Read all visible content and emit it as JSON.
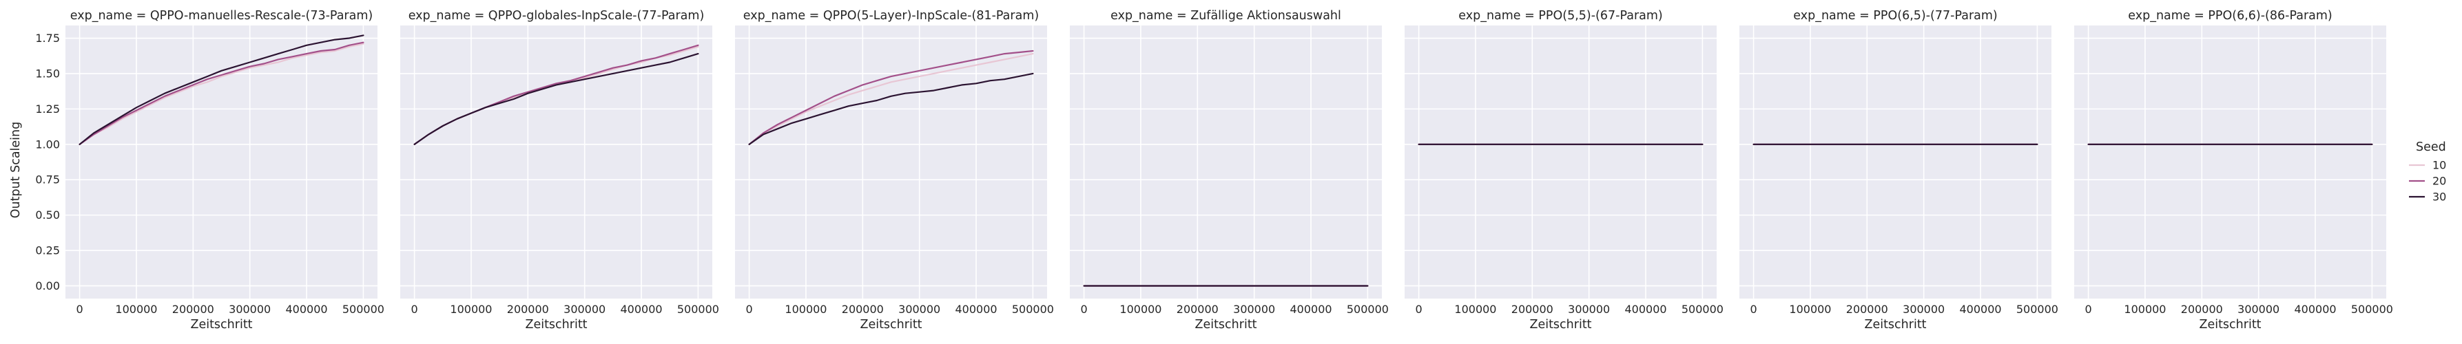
{
  "chart_data": {
    "type": "line",
    "facet_prefix": "exp_name = ",
    "xlabel": "Zeitschritt",
    "ylabel": "Output Scaleing",
    "xlim": [
      -25000,
      525000
    ],
    "ylim": [
      -0.09,
      1.84
    ],
    "xticks": [
      0,
      100000,
      200000,
      300000,
      400000,
      500000
    ],
    "yticks": [
      0.0,
      0.25,
      0.5,
      0.75,
      1.0,
      1.25,
      1.5,
      1.75
    ],
    "ytick_labels": [
      "0.00",
      "0.25",
      "0.50",
      "0.75",
      "1.00",
      "1.25",
      "1.50",
      "1.75"
    ],
    "grid": true,
    "legend": {
      "title": "Seed",
      "placement": "right",
      "entries": [
        {
          "label": "10",
          "color": "#e8c6d4"
        },
        {
          "label": "20",
          "color": "#a3508a"
        },
        {
          "label": "30",
          "color": "#2b1331"
        }
      ]
    },
    "x": [
      0,
      25000,
      50000,
      75000,
      100000,
      125000,
      150000,
      175000,
      200000,
      225000,
      250000,
      275000,
      300000,
      325000,
      350000,
      375000,
      400000,
      425000,
      450000,
      475000,
      500000
    ],
    "facets": [
      {
        "title": "QPPO-manuelles-Rescale-(73-Param)",
        "series": [
          {
            "seed": "10",
            "values": [
              1.0,
              1.07,
              1.12,
              1.18,
              1.23,
              1.28,
              1.33,
              1.37,
              1.41,
              1.44,
              1.48,
              1.51,
              1.54,
              1.56,
              1.58,
              1.61,
              1.63,
              1.65,
              1.66,
              1.69,
              1.71
            ]
          },
          {
            "seed": "20",
            "values": [
              1.0,
              1.07,
              1.13,
              1.19,
              1.24,
              1.29,
              1.34,
              1.38,
              1.42,
              1.46,
              1.49,
              1.52,
              1.55,
              1.57,
              1.6,
              1.62,
              1.64,
              1.66,
              1.67,
              1.7,
              1.72
            ]
          },
          {
            "seed": "30",
            "values": [
              1.0,
              1.08,
              1.14,
              1.2,
              1.26,
              1.31,
              1.36,
              1.4,
              1.44,
              1.48,
              1.52,
              1.55,
              1.58,
              1.61,
              1.64,
              1.67,
              1.7,
              1.72,
              1.74,
              1.75,
              1.77
            ]
          }
        ]
      },
      {
        "title": "QPPO-globales-InpScale-(77-Param)",
        "series": [
          {
            "seed": "10",
            "values": [
              1.0,
              1.07,
              1.13,
              1.18,
              1.22,
              1.26,
              1.3,
              1.33,
              1.36,
              1.39,
              1.42,
              1.45,
              1.47,
              1.5,
              1.53,
              1.56,
              1.58,
              1.61,
              1.63,
              1.66,
              1.69
            ]
          },
          {
            "seed": "20",
            "values": [
              1.0,
              1.07,
              1.13,
              1.18,
              1.22,
              1.26,
              1.3,
              1.34,
              1.37,
              1.4,
              1.43,
              1.45,
              1.48,
              1.51,
              1.54,
              1.56,
              1.59,
              1.61,
              1.64,
              1.67,
              1.7
            ]
          },
          {
            "seed": "30",
            "values": [
              1.0,
              1.07,
              1.13,
              1.18,
              1.22,
              1.26,
              1.29,
              1.32,
              1.36,
              1.39,
              1.42,
              1.44,
              1.46,
              1.48,
              1.5,
              1.52,
              1.54,
              1.56,
              1.58,
              1.61,
              1.64
            ]
          }
        ]
      },
      {
        "title": "QPPO(5-Layer)-InpScale-(81-Param)",
        "series": [
          {
            "seed": "10",
            "values": [
              1.0,
              1.08,
              1.13,
              1.18,
              1.23,
              1.27,
              1.31,
              1.35,
              1.38,
              1.41,
              1.44,
              1.46,
              1.48,
              1.5,
              1.52,
              1.54,
              1.56,
              1.58,
              1.6,
              1.62,
              1.64
            ]
          },
          {
            "seed": "20",
            "values": [
              1.0,
              1.08,
              1.14,
              1.19,
              1.24,
              1.29,
              1.34,
              1.38,
              1.42,
              1.45,
              1.48,
              1.5,
              1.52,
              1.54,
              1.56,
              1.58,
              1.6,
              1.62,
              1.64,
              1.65,
              1.66
            ]
          },
          {
            "seed": "30",
            "values": [
              1.0,
              1.07,
              1.11,
              1.15,
              1.18,
              1.21,
              1.24,
              1.27,
              1.29,
              1.31,
              1.34,
              1.36,
              1.37,
              1.38,
              1.4,
              1.42,
              1.43,
              1.45,
              1.46,
              1.48,
              1.5
            ]
          }
        ]
      },
      {
        "title": "Zufällige Aktionsauswahl",
        "series": [
          {
            "seed": "10",
            "values": [
              0.0,
              0.0,
              0.0,
              0.0,
              0.0,
              0.0,
              0.0,
              0.0,
              0.0,
              0.0,
              0.0,
              0.0,
              0.0,
              0.0,
              0.0,
              0.0,
              0.0,
              0.0,
              0.0,
              0.0,
              0.0
            ]
          },
          {
            "seed": "20",
            "values": [
              0.0,
              0.0,
              0.0,
              0.0,
              0.0,
              0.0,
              0.0,
              0.0,
              0.0,
              0.0,
              0.0,
              0.0,
              0.0,
              0.0,
              0.0,
              0.0,
              0.0,
              0.0,
              0.0,
              0.0,
              0.0
            ]
          },
          {
            "seed": "30",
            "values": [
              0.0,
              0.0,
              0.0,
              0.0,
              0.0,
              0.0,
              0.0,
              0.0,
              0.0,
              0.0,
              0.0,
              0.0,
              0.0,
              0.0,
              0.0,
              0.0,
              0.0,
              0.0,
              0.0,
              0.0,
              0.0
            ]
          }
        ]
      },
      {
        "title": "PPO(5,5)-(67-Param)",
        "series": [
          {
            "seed": "10",
            "values": [
              1.0,
              1.0,
              1.0,
              1.0,
              1.0,
              1.0,
              1.0,
              1.0,
              1.0,
              1.0,
              1.0,
              1.0,
              1.0,
              1.0,
              1.0,
              1.0,
              1.0,
              1.0,
              1.0,
              1.0,
              1.0
            ]
          },
          {
            "seed": "20",
            "values": [
              1.0,
              1.0,
              1.0,
              1.0,
              1.0,
              1.0,
              1.0,
              1.0,
              1.0,
              1.0,
              1.0,
              1.0,
              1.0,
              1.0,
              1.0,
              1.0,
              1.0,
              1.0,
              1.0,
              1.0,
              1.0
            ]
          },
          {
            "seed": "30",
            "values": [
              1.0,
              1.0,
              1.0,
              1.0,
              1.0,
              1.0,
              1.0,
              1.0,
              1.0,
              1.0,
              1.0,
              1.0,
              1.0,
              1.0,
              1.0,
              1.0,
              1.0,
              1.0,
              1.0,
              1.0,
              1.0
            ]
          }
        ]
      },
      {
        "title": "PPO(6,5)-(77-Param)",
        "series": [
          {
            "seed": "10",
            "values": [
              1.0,
              1.0,
              1.0,
              1.0,
              1.0,
              1.0,
              1.0,
              1.0,
              1.0,
              1.0,
              1.0,
              1.0,
              1.0,
              1.0,
              1.0,
              1.0,
              1.0,
              1.0,
              1.0,
              1.0,
              1.0
            ]
          },
          {
            "seed": "20",
            "values": [
              1.0,
              1.0,
              1.0,
              1.0,
              1.0,
              1.0,
              1.0,
              1.0,
              1.0,
              1.0,
              1.0,
              1.0,
              1.0,
              1.0,
              1.0,
              1.0,
              1.0,
              1.0,
              1.0,
              1.0,
              1.0
            ]
          },
          {
            "seed": "30",
            "values": [
              1.0,
              1.0,
              1.0,
              1.0,
              1.0,
              1.0,
              1.0,
              1.0,
              1.0,
              1.0,
              1.0,
              1.0,
              1.0,
              1.0,
              1.0,
              1.0,
              1.0,
              1.0,
              1.0,
              1.0,
              1.0
            ]
          }
        ]
      },
      {
        "title": "PPO(6,6)-(86-Param)",
        "series": [
          {
            "seed": "10",
            "values": [
              1.0,
              1.0,
              1.0,
              1.0,
              1.0,
              1.0,
              1.0,
              1.0,
              1.0,
              1.0,
              1.0,
              1.0,
              1.0,
              1.0,
              1.0,
              1.0,
              1.0,
              1.0,
              1.0,
              1.0,
              1.0
            ]
          },
          {
            "seed": "20",
            "values": [
              1.0,
              1.0,
              1.0,
              1.0,
              1.0,
              1.0,
              1.0,
              1.0,
              1.0,
              1.0,
              1.0,
              1.0,
              1.0,
              1.0,
              1.0,
              1.0,
              1.0,
              1.0,
              1.0,
              1.0,
              1.0
            ]
          },
          {
            "seed": "30",
            "values": [
              1.0,
              1.0,
              1.0,
              1.0,
              1.0,
              1.0,
              1.0,
              1.0,
              1.0,
              1.0,
              1.0,
              1.0,
              1.0,
              1.0,
              1.0,
              1.0,
              1.0,
              1.0,
              1.0,
              1.0,
              1.0
            ]
          }
        ]
      }
    ]
  }
}
